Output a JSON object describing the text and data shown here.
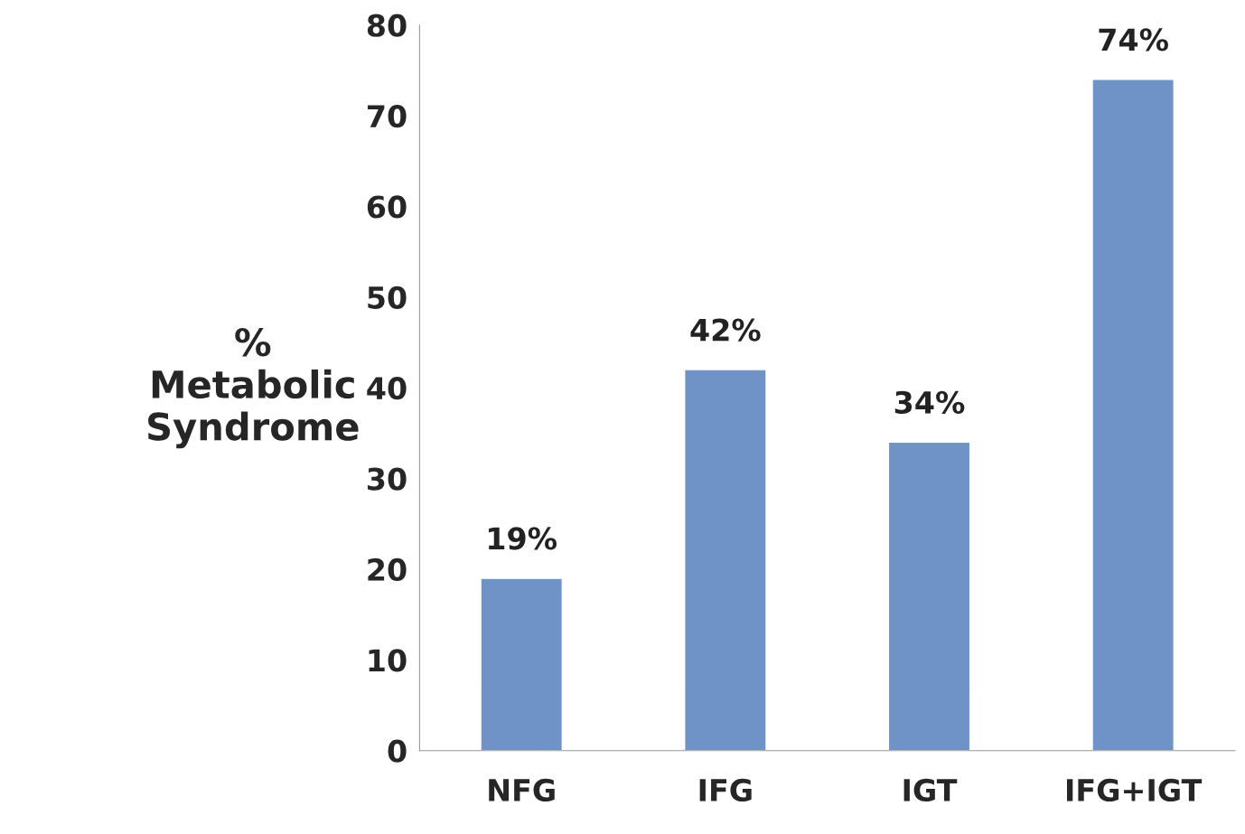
{
  "chart_data": {
    "type": "bar",
    "ylabel": "%\nMetabolic\nSyndrome",
    "categories": [
      "NFG",
      "IFG",
      "IGT",
      "IFG+IGT"
    ],
    "values": [
      19,
      42,
      34,
      74
    ],
    "value_labels": [
      "19%",
      "42%",
      "34%",
      "74%"
    ],
    "color": "#6f93c6",
    "ylim": [
      0,
      80
    ],
    "yticks": [
      0,
      10,
      20,
      30,
      40,
      50,
      60,
      70,
      80
    ],
    "grid": false
  }
}
